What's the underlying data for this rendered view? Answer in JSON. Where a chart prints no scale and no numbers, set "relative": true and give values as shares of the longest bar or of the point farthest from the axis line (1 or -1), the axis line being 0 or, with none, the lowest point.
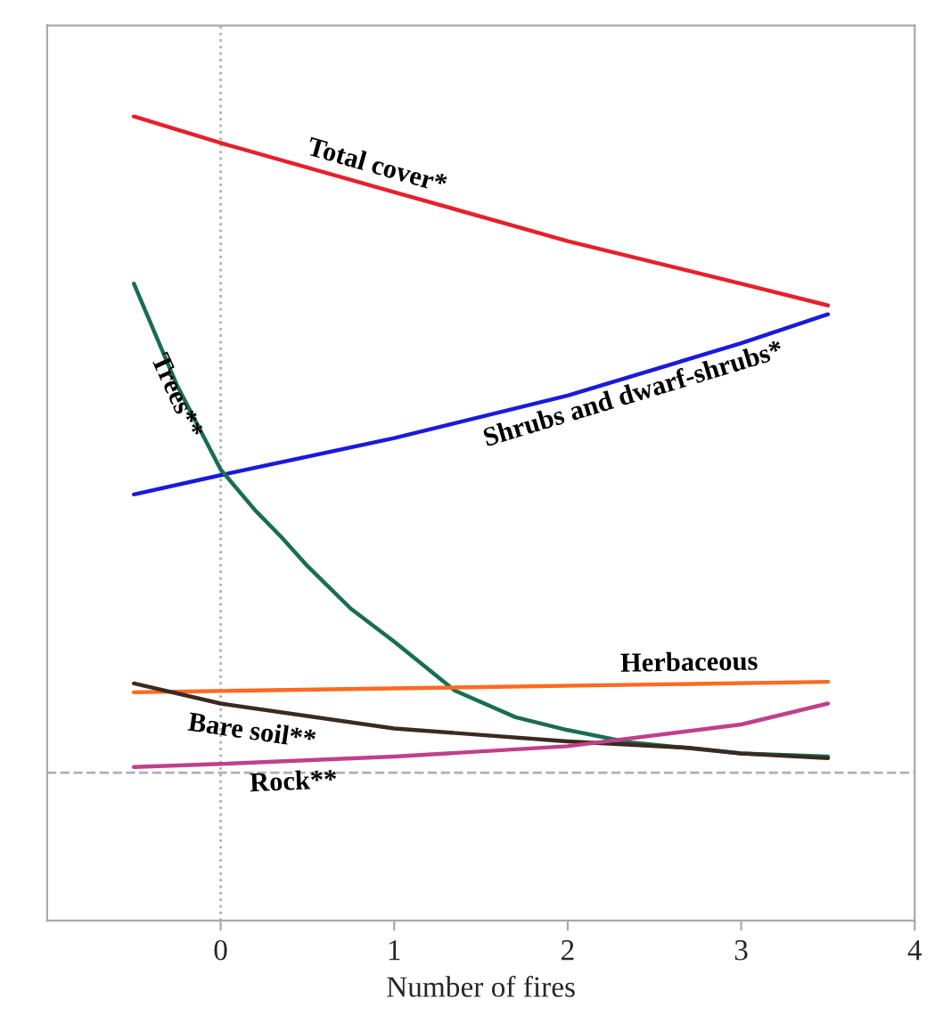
{
  "chart_data": {
    "type": "line",
    "relative": true,
    "xlabel": "Number of fires",
    "xlim": [
      -1,
      4
    ],
    "xticks": [
      0,
      1,
      2,
      3,
      4
    ],
    "grid": false,
    "legend": false,
    "marker": "none",
    "line_style": "solid",
    "ref_lines": [
      {
        "axis": "x",
        "value": 0,
        "color": "#b0b0b0",
        "line_style": "dotted"
      },
      {
        "axis": "y",
        "value": 0.184,
        "color": "#b0b0b0",
        "line_style": "dashed"
      }
    ],
    "series": [
      {
        "name": "Total cover*",
        "color": "#e8202a",
        "x": [
          -0.5,
          0,
          1,
          2,
          3,
          3.5
        ],
        "values": [
          1.0,
          0.967,
          0.906,
          0.845,
          0.792,
          0.765
        ]
      },
      {
        "name": "Shrubs and dwarf-shrubs*",
        "color": "#1a1adc",
        "x": [
          -0.5,
          0,
          1,
          2,
          3,
          3.5
        ],
        "values": [
          0.53,
          0.554,
          0.6,
          0.653,
          0.718,
          0.754
        ]
      },
      {
        "name": "Trees**",
        "color": "#1a6e50",
        "x": [
          -0.5,
          -0.25,
          0,
          0.2,
          0.35,
          0.5,
          0.75,
          1,
          1.35,
          1.7,
          2,
          2.35,
          3,
          3.5
        ],
        "values": [
          0.792,
          0.665,
          0.561,
          0.51,
          0.477,
          0.441,
          0.388,
          0.347,
          0.286,
          0.253,
          0.237,
          0.222,
          0.208,
          0.204
        ]
      },
      {
        "name": "Herbaceous",
        "color": "#ff6a20",
        "x": [
          -0.5,
          3.5
        ],
        "values": [
          0.284,
          0.297
        ]
      },
      {
        "name": "Bare soil**",
        "color": "#3a2a20",
        "x": [
          -0.5,
          0,
          1,
          2,
          2.7,
          3,
          3.5
        ],
        "values": [
          0.295,
          0.27,
          0.239,
          0.223,
          0.215,
          0.208,
          0.202
        ]
      },
      {
        "name": "Rock**",
        "color": "#c0408a",
        "x": [
          -0.5,
          0,
          1,
          2,
          3,
          3.5
        ],
        "values": [
          0.191,
          0.195,
          0.204,
          0.217,
          0.244,
          0.27
        ]
      }
    ]
  }
}
